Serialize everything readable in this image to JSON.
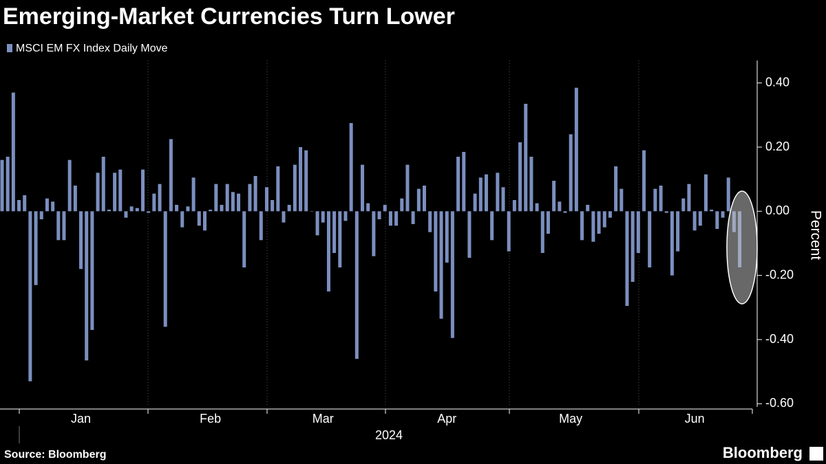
{
  "chart_data": {
    "type": "bar",
    "title": "Emerging-Market Currencies Turn Lower",
    "y_label": "Percent",
    "x_label": "2024",
    "source": "Source: Bloomberg",
    "brand": "Bloomberg",
    "color": "#7b8fbf",
    "ylim": [
      -0.61,
      0.47
    ],
    "yticks": [
      {
        "value": 0.4,
        "label": "0.40"
      },
      {
        "value": 0.2,
        "label": "0.20"
      },
      {
        "value": 0,
        "label": "0.00"
      },
      {
        "value": -0.2,
        "label": "-0.20"
      },
      {
        "value": -0.4,
        "label": "-0.40"
      },
      {
        "value": -0.6,
        "label": "-0.60"
      }
    ],
    "categories": [
      null,
      null,
      null,
      null,
      null,
      null,
      null,
      null,
      null,
      null,
      null,
      null,
      null,
      null,
      "Jan",
      null,
      null,
      null,
      null,
      null,
      null,
      null,
      null,
      null,
      null,
      null,
      null,
      null,
      null,
      null,
      null,
      null,
      null,
      null,
      null,
      null,
      null,
      "Feb",
      null,
      null,
      null,
      null,
      null,
      null,
      null,
      null,
      null,
      null,
      null,
      null,
      null,
      null,
      null,
      null,
      null,
      null,
      null,
      "Mar",
      null,
      null,
      null,
      null,
      null,
      null,
      null,
      null,
      null,
      null,
      null,
      null,
      null,
      null,
      null,
      null,
      null,
      null,
      null,
      null,
      null,
      "Apr",
      null,
      null,
      null,
      null,
      null,
      null,
      null,
      null,
      null,
      null,
      null,
      null,
      null,
      null,
      null,
      null,
      null,
      null,
      null,
      null,
      null,
      "May",
      null,
      null,
      null,
      null,
      null,
      null,
      null,
      null,
      null,
      null,
      null,
      null,
      null,
      null,
      null,
      null,
      null,
      null,
      null,
      null,
      null,
      "Jun",
      null,
      null,
      null,
      null,
      null,
      null,
      null,
      null
    ],
    "series": [
      {
        "name": "MSCI EM FX Index Daily Move",
        "color": "#7b8fbf",
        "values": [
          0.16,
          0.17,
          0.37,
          0.035,
          0.05,
          -0.53,
          -0.23,
          -0.025,
          0.04,
          0.03,
          -0.09,
          -0.09,
          0.16,
          0.08,
          -0.18,
          -0.465,
          -0.37,
          0.12,
          0.17,
          0.005,
          0.12,
          0.13,
          -0.02,
          0.015,
          0.01,
          0.13,
          -0.005,
          0.055,
          0.085,
          -0.36,
          0.225,
          0.02,
          -0.05,
          0.015,
          0.105,
          -0.045,
          -0.06,
          0.005,
          0.085,
          0.02,
          0.085,
          0.06,
          0.055,
          -0.175,
          0.085,
          0.11,
          -0.09,
          0.075,
          0.035,
          0.14,
          -0.035,
          0.02,
          0.145,
          0.2,
          0.19,
          0,
          -0.075,
          -0.035,
          -0.25,
          -0.13,
          -0.175,
          -0.03,
          0.275,
          -0.46,
          0.145,
          0.025,
          -0.14,
          -0.025,
          0.02,
          -0.045,
          -0.045,
          0.04,
          0.145,
          -0.04,
          0.07,
          0.08,
          -0.065,
          -0.25,
          -0.335,
          -0.16,
          -0.395,
          0.17,
          0.185,
          -0.145,
          0.055,
          0.105,
          0.115,
          -0.09,
          0.12,
          0.075,
          -0.125,
          0.035,
          0.215,
          0.335,
          0.17,
          0.025,
          -0.13,
          -0.07,
          0.095,
          0.03,
          -0.005,
          0.24,
          0.385,
          -0.09,
          0.02,
          -0.095,
          -0.07,
          -0.05,
          -0.02,
          0.14,
          0.07,
          -0.295,
          -0.22,
          -0.13,
          0.19,
          -0.175,
          0.07,
          0.08,
          -0.005,
          -0.2,
          -0.125,
          0.04,
          0.085,
          -0.06,
          -0.045,
          0.115,
          0.005,
          -0.055,
          -0.02,
          0.105,
          -0.065,
          -0.175
        ]
      }
    ]
  }
}
